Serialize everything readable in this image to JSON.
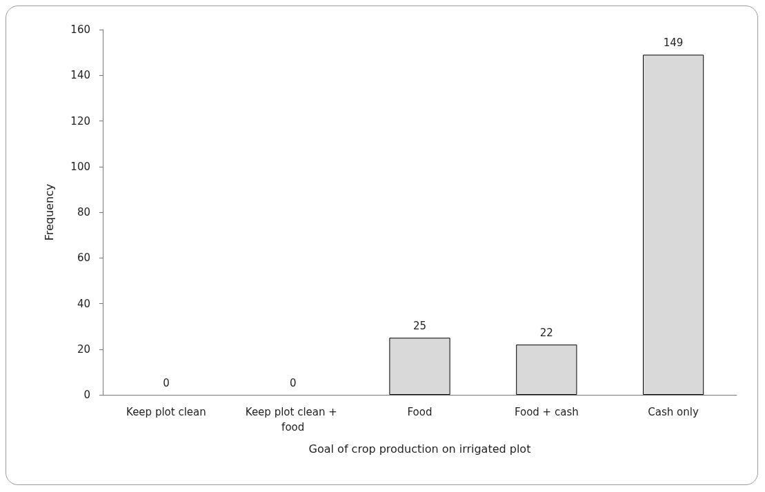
{
  "chart_data": {
    "type": "bar",
    "xlabel": "Goal of crop production on irrigated plot",
    "ylabel": "Frequency",
    "categories": [
      "Keep plot clean",
      "Keep plot clean + food",
      "Food",
      "Food + cash",
      "Cash only"
    ],
    "values": [
      0,
      0,
      25,
      22,
      149
    ],
    "color": "#d9d9d9",
    "data_labels": true,
    "ylim": [
      0,
      160
    ],
    "yticks": [
      0,
      20,
      40,
      60,
      80,
      100,
      120,
      140,
      160
    ],
    "grid": false
  }
}
